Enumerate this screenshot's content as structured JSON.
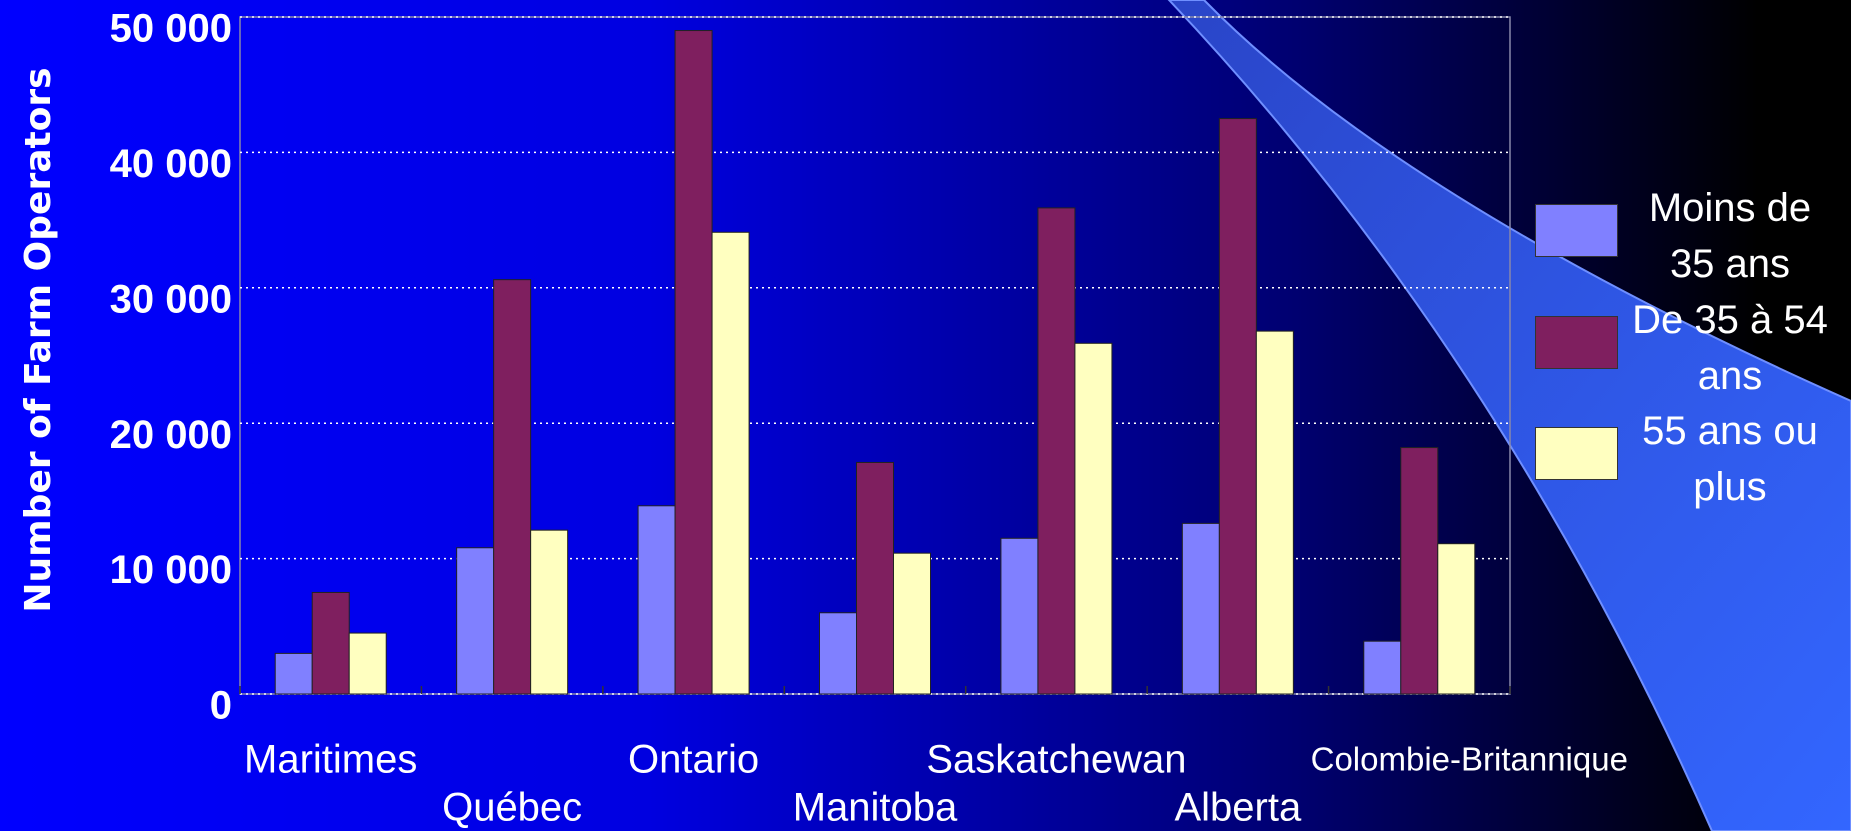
{
  "chart_data": {
    "type": "bar",
    "y_label": "Number of Farm Operators",
    "categories": [
      "Maritimes",
      "Québec",
      "Ontario",
      "Manitoba",
      "Saskatchewan",
      "Alberta",
      "Colombie-Britannique"
    ],
    "series": [
      {
        "name": "Moins de 35 ans",
        "color": "#8080ff",
        "values": [
          3000,
          10800,
          13900,
          6000,
          11500,
          12600,
          3900
        ]
      },
      {
        "name": "De 35 à 54 ans",
        "color": "#7f1f5f",
        "values": [
          7500,
          30600,
          49000,
          17100,
          35900,
          42500,
          18200
        ]
      },
      {
        "name": "55 ans ou plus",
        "color": "#ffffc0",
        "values": [
          4500,
          12100,
          34100,
          10400,
          25900,
          26800,
          11100
        ]
      }
    ],
    "ylim": [
      0,
      50000
    ],
    "yticks": [
      0,
      {
        "value": 10000,
        "label": "10 000"
      },
      {
        "value": 20000,
        "label": "20 000"
      },
      {
        "value": 30000,
        "label": "30 000"
      },
      {
        "value": 40000,
        "label": "40 000"
      },
      {
        "value": 50000,
        "label": "50 000"
      }
    ],
    "grid": true,
    "legend": "right"
  }
}
